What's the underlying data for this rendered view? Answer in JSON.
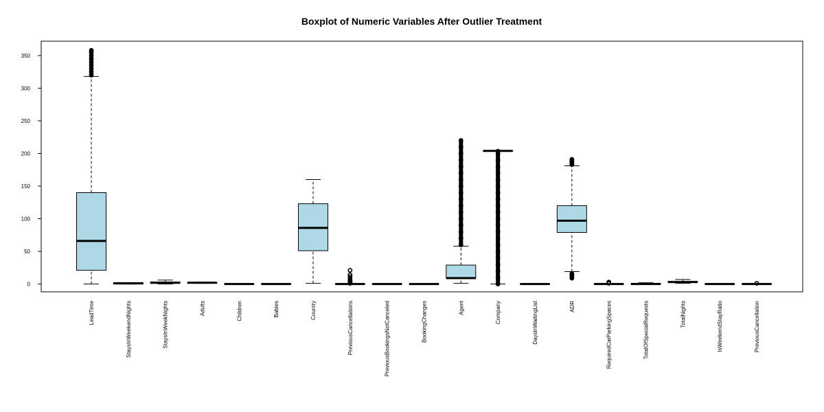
{
  "chart_data": {
    "type": "boxplot",
    "title": "Boxplot of Numeric Variables After Outlier Treatment",
    "xlabel": "",
    "ylabel": "",
    "ylim": [
      -12,
      372
    ],
    "yticks": [
      0,
      50,
      100,
      150,
      200,
      250,
      300,
      350
    ],
    "box_fill": "#add8e6",
    "grid": false,
    "categories": [
      "LeadTime",
      "StaysInWeekendNights",
      "StaysInWeekNights",
      "Adults",
      "Children",
      "Babies",
      "Country",
      "PreviousCancellations",
      "PreviousBookingsNotCanceled",
      "BookingChanges",
      "Agent",
      "Company",
      "DaysInWaitingList",
      "ADR",
      "RequiredCarParkingSpaces",
      "TotalOfSpecialRequests",
      "TotalNights",
      "IsWeekendStayRatio",
      "PreviousCancellation"
    ],
    "boxes": [
      {
        "min": 0,
        "q1": 21,
        "median": 66,
        "q3": 140,
        "max": 318,
        "outliers": [
          320,
          325,
          330,
          335,
          340,
          345,
          350,
          355,
          358
        ]
      },
      {
        "min": 0,
        "q1": 0,
        "median": 1,
        "q3": 2,
        "max": 2,
        "outliers": []
      },
      {
        "min": 0,
        "q1": 1,
        "median": 2,
        "q3": 3,
        "max": 6,
        "outliers": []
      },
      {
        "min": 1,
        "q1": 2,
        "median": 2,
        "q3": 2,
        "max": 3,
        "outliers": []
      },
      {
        "min": 0,
        "q1": 0,
        "median": 0,
        "q3": 0,
        "max": 0,
        "outliers": []
      },
      {
        "min": 0,
        "q1": 0,
        "median": 0,
        "q3": 0,
        "max": 0,
        "outliers": []
      },
      {
        "min": 1,
        "q1": 51,
        "median": 86,
        "q3": 123,
        "max": 160,
        "outliers": []
      },
      {
        "min": 0,
        "q1": 0,
        "median": 0,
        "q3": 0,
        "max": 0,
        "outliers": [
          1,
          2,
          3,
          4,
          5,
          6,
          8,
          11,
          14,
          21
        ]
      },
      {
        "min": 0,
        "q1": 0,
        "median": 0,
        "q3": 0,
        "max": 0,
        "outliers": []
      },
      {
        "min": 0,
        "q1": 0,
        "median": 0,
        "q3": 0,
        "max": 0,
        "outliers": []
      },
      {
        "min": 1,
        "q1": 9,
        "median": 9,
        "q3": 29,
        "max": 58,
        "outliers": [
          60,
          70,
          80,
          90,
          100,
          110,
          120,
          130,
          140,
          150,
          160,
          170,
          180,
          190,
          200,
          210,
          220
        ]
      },
      {
        "min": 0,
        "q1": 204,
        "median": 204,
        "q3": 204,
        "max": 204,
        "outliers": [
          0,
          10,
          20,
          30,
          40,
          50,
          60,
          70,
          80,
          90,
          100,
          110,
          120,
          130,
          140,
          150,
          160,
          170,
          180,
          190,
          200
        ]
      },
      {
        "min": 0,
        "q1": 0,
        "median": 0,
        "q3": 0,
        "max": 0,
        "outliers": []
      },
      {
        "min": 19,
        "q1": 79,
        "median": 97,
        "q3": 120,
        "max": 181,
        "outliers": [
          9,
          11,
          13,
          15,
          16,
          183,
          185,
          187,
          189,
          191
        ]
      },
      {
        "min": 0,
        "q1": 0,
        "median": 0,
        "q3": 0,
        "max": 0,
        "outliers": [
          1,
          2,
          3
        ]
      },
      {
        "min": 0,
        "q1": 0,
        "median": 0,
        "q3": 1,
        "max": 2,
        "outliers": []
      },
      {
        "min": 1,
        "q1": 3,
        "median": 3,
        "q3": 4,
        "max": 7,
        "outliers": []
      },
      {
        "min": 0,
        "q1": 0,
        "median": 0,
        "q3": 0,
        "max": 0,
        "outliers": []
      },
      {
        "min": 0,
        "q1": 0,
        "median": 0,
        "q3": 0,
        "max": 0,
        "outliers": [
          1
        ]
      }
    ]
  }
}
